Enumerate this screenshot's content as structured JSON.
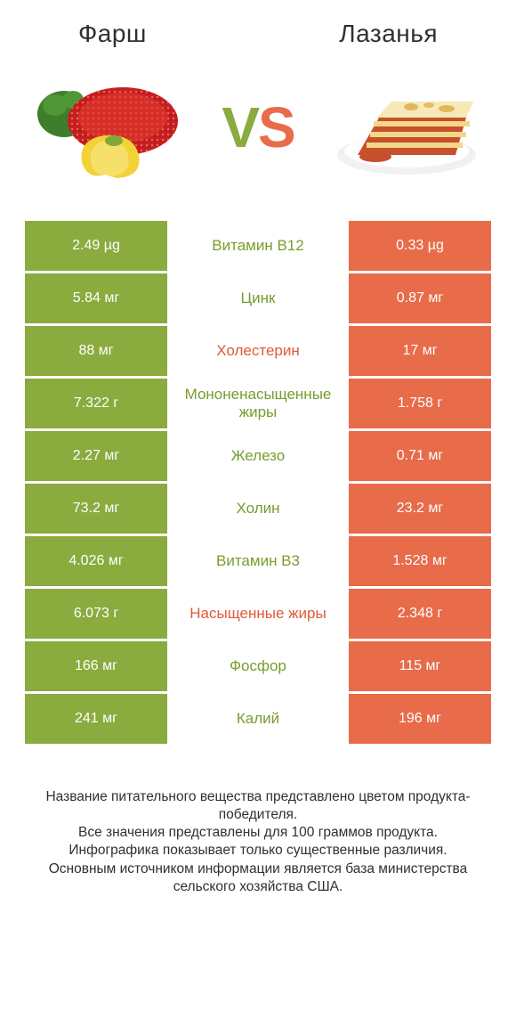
{
  "leftTitle": "Фарш",
  "rightTitle": "Лазанья",
  "vs": {
    "v": "V",
    "s": "S"
  },
  "colors": {
    "left": "#8aab3e",
    "right": "#e86b4a",
    "midGood": "#789c2e",
    "midBad": "#e05a38",
    "text": "#303030"
  },
  "rows": [
    {
      "left": "2.49 µg",
      "mid": "Витамин B12",
      "right": "0.33 µg",
      "winner": "left"
    },
    {
      "left": "5.84 мг",
      "mid": "Цинк",
      "right": "0.87 мг",
      "winner": "left"
    },
    {
      "left": "88 мг",
      "mid": "Холестерин",
      "right": "17 мг",
      "winner": "right"
    },
    {
      "left": "7.322 г",
      "mid": "Мононенасыщенные жиры",
      "right": "1.758 г",
      "winner": "left"
    },
    {
      "left": "2.27 мг",
      "mid": "Железо",
      "right": "0.71 мг",
      "winner": "left"
    },
    {
      "left": "73.2 мг",
      "mid": "Холин",
      "right": "23.2 мг",
      "winner": "left"
    },
    {
      "left": "4.026 мг",
      "mid": "Витамин B3",
      "right": "1.528 мг",
      "winner": "left"
    },
    {
      "left": "6.073 г",
      "mid": "Насыщенные жиры",
      "right": "2.348 г",
      "winner": "right"
    },
    {
      "left": "166 мг",
      "mid": "Фосфор",
      "right": "115 мг",
      "winner": "left"
    },
    {
      "left": "241 мг",
      "mid": "Калий",
      "right": "196 мг",
      "winner": "left"
    }
  ],
  "note": "Название питательного вещества представлено цветом продукта-победителя.\nВсе значения представлены для 100 граммов продукта.\nИнфографика показывает только существенные различия.\nОсновным источником информации является база министерства сельского хозяйства США.",
  "font": {
    "title": 28,
    "cell": 16,
    "mid": 17,
    "note": 15.5
  }
}
